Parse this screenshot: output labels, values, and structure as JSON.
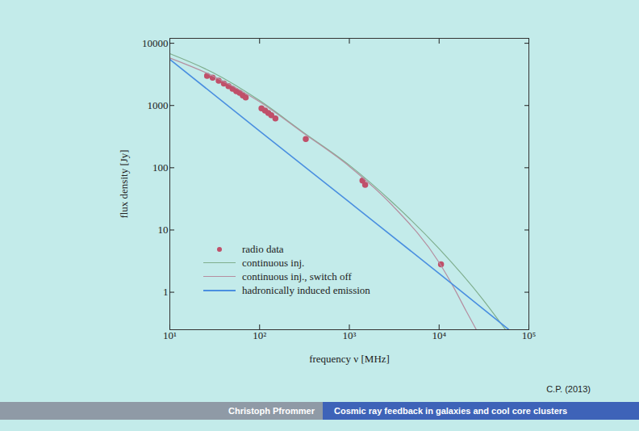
{
  "chart_data": {
    "type": "line",
    "x_label": "frequency ν [MHz]",
    "y_label": "flux density [Jy]",
    "log": true,
    "grid": false,
    "legend": "lower left",
    "xlim": [
      10,
      100000
    ],
    "xticks": [
      {
        "value": 10,
        "label": "10¹"
      },
      {
        "value": 100,
        "label": "10²"
      },
      {
        "value": 1000,
        "label": "10³"
      },
      {
        "value": 10000,
        "label": "10⁴"
      },
      {
        "value": 100000,
        "label": "10⁵"
      }
    ],
    "ylim": [
      0.25,
      12000
    ],
    "yticks": [
      1,
      10,
      100,
      1000,
      10000
    ],
    "series": [
      {
        "name": "radio data",
        "type": "scatter",
        "marker": "circle",
        "color": "#c0506a",
        "x": [
          26,
          30,
          35,
          40,
          45,
          50,
          55,
          60,
          65,
          70,
          105,
          115,
          125,
          135,
          150,
          327,
          1400,
          1500,
          10500
        ],
        "values": [
          3000,
          2800,
          2500,
          2250,
          2050,
          1850,
          1700,
          1600,
          1450,
          1350,
          900,
          830,
          760,
          700,
          620,
          290,
          62,
          53,
          2.8
        ]
      },
      {
        "name": "continuous inj.",
        "type": "line",
        "line_style": "solid",
        "color": "#7fae8e",
        "x": [
          10,
          30,
          100,
          300,
          1000,
          3000,
          10000,
          30000,
          55000
        ],
        "values": [
          6800,
          3400,
          1200,
          380,
          110,
          28,
          5,
          0.8,
          0.25
        ]
      },
      {
        "name": "continuous inj., switch off",
        "type": "line",
        "line_style": "solid",
        "color": "#b58ea0",
        "x": [
          10,
          30,
          100,
          300,
          1000,
          3000,
          10000,
          15000,
          20000,
          26000
        ],
        "values": [
          5800,
          3000,
          1150,
          370,
          105,
          25,
          3.0,
          1.1,
          0.5,
          0.25
        ]
      },
      {
        "name": "hadronically induced emission",
        "type": "line",
        "line_style": "solid",
        "color": "#4a8fe0",
        "x": [
          10,
          100,
          1000,
          10000,
          60000
        ],
        "values": [
          5500,
          390,
          28,
          2.0,
          0.25
        ]
      }
    ],
    "caption": "C.P. (2013)",
    "footer": [
      "Christoph Pfrommer",
      "Cosmic ray feedback in galaxies and cool core clusters"
    ]
  }
}
